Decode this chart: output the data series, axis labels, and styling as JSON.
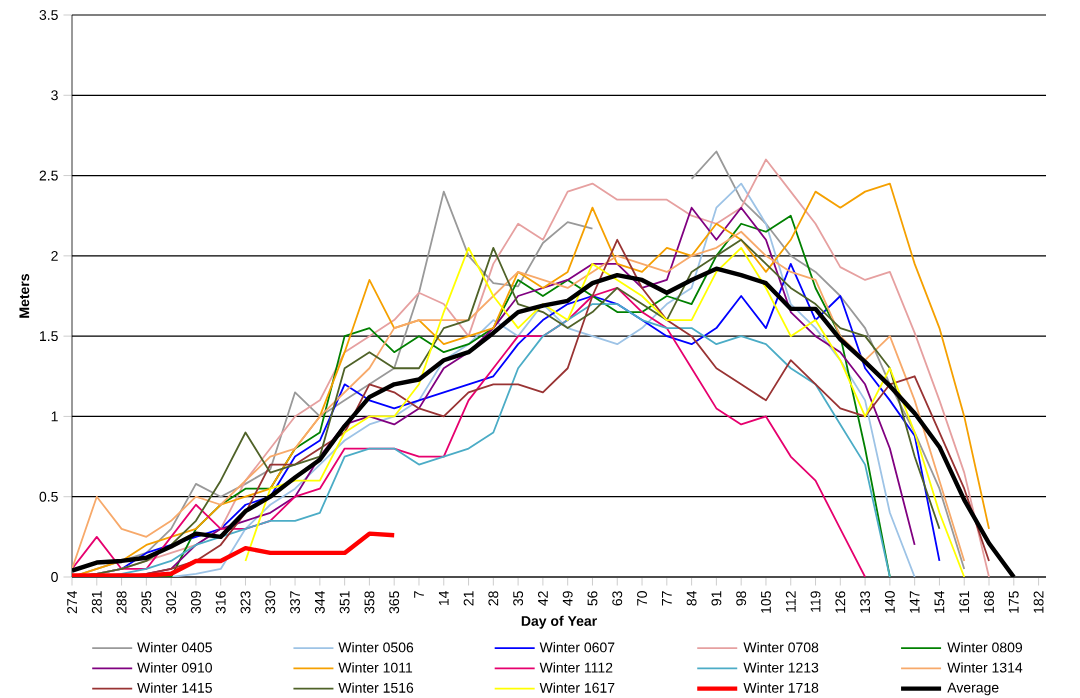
{
  "chart_data": {
    "type": "line",
    "xlabel": "Day of Year",
    "ylabel": "Meters",
    "ylim": [
      0,
      3.5
    ],
    "yticks": [
      0,
      0.5,
      1,
      1.5,
      2,
      2.5,
      3,
      3.5
    ],
    "categories": [
      "274",
      "281",
      "288",
      "295",
      "302",
      "309",
      "316",
      "323",
      "330",
      "337",
      "344",
      "351",
      "358",
      "365",
      "7",
      "14",
      "21",
      "28",
      "35",
      "42",
      "49",
      "56",
      "63",
      "70",
      "77",
      "84",
      "91",
      "98",
      "105",
      "112",
      "119",
      "126",
      "133",
      "140",
      "147",
      "154",
      "161",
      "168",
      "175",
      "182"
    ],
    "grid": "y",
    "legend": "bottom",
    "line_style": "solid",
    "series": [
      {
        "name": "Winter 0405",
        "color": "#999999",
        "values": [
          0,
          0.05,
          0.1,
          0.15,
          0.3,
          0.58,
          0.5,
          0.58,
          0.67,
          1.15,
          1.0,
          1.1,
          1.2,
          1.3,
          1.77,
          2.4,
          2.0,
          1.83,
          1.81,
          2.08,
          2.21,
          2.17,
          null,
          null,
          null,
          2.48,
          2.65,
          2.35,
          2.2,
          2.0,
          1.9,
          1.75,
          1.55,
          1.2,
          0.9,
          0.55,
          0.05,
          null,
          null,
          null
        ]
      },
      {
        "name": "Winter 0506",
        "color": "#9dc3e6",
        "values": [
          null,
          null,
          null,
          0,
          0,
          0.02,
          0.05,
          0.3,
          0.45,
          0.55,
          0.7,
          0.85,
          0.95,
          1.0,
          1.1,
          1.35,
          1.45,
          1.6,
          1.5,
          1.7,
          1.55,
          1.5,
          1.45,
          1.55,
          1.7,
          1.8,
          2.3,
          2.45,
          2.2,
          1.7,
          1.55,
          1.35,
          1.1,
          0.4,
          0,
          null,
          null,
          null,
          null,
          null
        ]
      },
      {
        "name": "Winter 0607",
        "color": "#0000ff",
        "values": [
          0,
          0.02,
          0.05,
          0.15,
          0.2,
          0.25,
          0.3,
          0.45,
          0.5,
          0.75,
          0.85,
          1.2,
          1.1,
          1.05,
          1.1,
          1.15,
          1.2,
          1.25,
          1.45,
          1.6,
          1.7,
          1.75,
          1.7,
          1.6,
          1.5,
          1.45,
          1.55,
          1.75,
          1.55,
          1.95,
          1.6,
          1.75,
          1.3,
          1.1,
          0.88,
          0.1,
          null,
          null,
          null,
          null
        ]
      },
      {
        "name": "Winter 0708",
        "color": "#e6a0a0",
        "values": [
          0,
          0.02,
          0.05,
          0.1,
          0.15,
          0.2,
          0.3,
          0.6,
          0.8,
          1.0,
          1.1,
          1.4,
          1.5,
          1.6,
          1.77,
          1.7,
          1.5,
          1.95,
          2.2,
          2.1,
          2.4,
          2.45,
          2.35,
          2.35,
          2.35,
          2.25,
          2.2,
          2.3,
          2.6,
          2.4,
          2.2,
          1.93,
          1.85,
          1.9,
          1.52,
          1.1,
          0.65,
          0,
          null,
          null
        ]
      },
      {
        "name": "Winter 0809",
        "color": "#008000",
        "values": [
          null,
          null,
          null,
          0,
          0,
          0.3,
          0.45,
          0.55,
          0.55,
          0.8,
          0.9,
          1.5,
          1.55,
          1.4,
          1.5,
          1.4,
          1.45,
          1.55,
          1.85,
          1.75,
          1.85,
          1.75,
          1.65,
          1.65,
          1.75,
          1.7,
          2.0,
          2.2,
          2.15,
          2.25,
          1.8,
          1.5,
          0.8,
          0,
          null,
          null,
          null,
          null,
          null,
          null
        ]
      },
      {
        "name": "Winter 0910",
        "color": "#800080",
        "values": [
          null,
          null,
          null,
          0.02,
          0.05,
          0.2,
          0.3,
          0.35,
          0.4,
          0.5,
          0.75,
          0.95,
          1.0,
          0.95,
          1.05,
          1.3,
          1.4,
          1.55,
          1.75,
          1.8,
          1.85,
          1.95,
          1.95,
          1.8,
          1.85,
          2.3,
          2.1,
          2.3,
          2.1,
          1.65,
          1.5,
          1.4,
          1.2,
          0.8,
          0.2,
          null,
          null,
          null,
          null,
          null
        ]
      },
      {
        "name": "Winter 1011",
        "color": "#f5a000",
        "values": [
          0,
          0.05,
          0.1,
          0.2,
          0.25,
          0.3,
          0.45,
          0.5,
          0.55,
          0.8,
          1.0,
          1.4,
          1.85,
          1.55,
          1.6,
          1.45,
          1.5,
          1.55,
          1.9,
          1.8,
          1.9,
          2.3,
          1.95,
          1.9,
          2.05,
          2.0,
          2.2,
          2.1,
          1.9,
          2.1,
          2.4,
          2.3,
          2.4,
          2.45,
          1.95,
          1.55,
          1.0,
          0.3,
          null,
          null
        ]
      },
      {
        "name": "Winter 1112",
        "color": "#e6006e",
        "values": [
          0.05,
          0.25,
          0.05,
          0.05,
          0.25,
          0.45,
          0.3,
          0.3,
          0.35,
          0.5,
          0.55,
          0.8,
          0.8,
          0.8,
          0.75,
          0.75,
          1.1,
          1.3,
          1.5,
          1.5,
          1.6,
          1.75,
          1.8,
          1.65,
          1.55,
          1.3,
          1.05,
          0.95,
          1.0,
          0.75,
          0.6,
          0.3,
          0,
          null,
          null,
          null,
          null,
          null,
          null,
          null
        ]
      },
      {
        "name": "Winter 1213",
        "color": "#4bacc6",
        "values": [
          0,
          0,
          0.02,
          0.05,
          0.1,
          0.2,
          0.25,
          0.3,
          0.35,
          0.35,
          0.4,
          0.75,
          0.8,
          0.8,
          0.7,
          0.75,
          0.8,
          0.9,
          1.3,
          1.5,
          1.6,
          1.7,
          1.7,
          1.6,
          1.55,
          1.55,
          1.45,
          1.5,
          1.45,
          1.3,
          1.2,
          0.95,
          0.7,
          0,
          null,
          null,
          null,
          null,
          null,
          null
        ]
      },
      {
        "name": "Winter 1314",
        "color": "#f7a96a",
        "values": [
          0.05,
          0.5,
          0.3,
          0.25,
          0.35,
          0.5,
          0.45,
          0.6,
          0.75,
          0.8,
          1.0,
          1.15,
          1.3,
          1.55,
          1.6,
          1.6,
          1.6,
          1.75,
          1.9,
          1.85,
          1.8,
          1.9,
          2.0,
          1.95,
          1.9,
          2.0,
          2.05,
          2.15,
          2.0,
          1.9,
          1.85,
          1.5,
          1.35,
          1.5,
          1.1,
          0.6,
          0.1,
          null,
          null,
          null
        ]
      },
      {
        "name": "Winter 1415",
        "color": "#993333",
        "values": [
          null,
          0,
          0,
          0.02,
          0.05,
          0.1,
          0.2,
          0.4,
          0.7,
          0.7,
          0.8,
          0.9,
          1.2,
          1.15,
          1.05,
          1.0,
          1.15,
          1.2,
          1.2,
          1.15,
          1.3,
          1.75,
          2.1,
          1.8,
          1.6,
          1.5,
          1.3,
          1.2,
          1.1,
          1.35,
          1.2,
          1.05,
          1.0,
          1.2,
          1.25,
          0.9,
          0.55,
          0.1,
          null,
          null
        ]
      },
      {
        "name": "Winter 1516",
        "color": "#4f6228",
        "values": [
          0,
          0.02,
          0.05,
          0.1,
          0.2,
          0.35,
          0.6,
          0.9,
          0.65,
          0.7,
          0.75,
          1.3,
          1.4,
          1.3,
          1.3,
          1.55,
          1.6,
          2.05,
          1.7,
          1.65,
          1.55,
          1.65,
          1.8,
          1.7,
          1.6,
          1.9,
          2.0,
          2.1,
          1.95,
          1.8,
          1.7,
          1.55,
          1.5,
          1.3,
          0.75,
          0.3,
          null,
          null,
          null,
          null
        ]
      },
      {
        "name": "Winter 1617",
        "color": "#ffff00",
        "values": [
          null,
          null,
          null,
          null,
          null,
          null,
          null,
          0.1,
          0.55,
          0.6,
          0.6,
          0.9,
          1.0,
          1.0,
          1.2,
          1.65,
          2.05,
          1.75,
          1.55,
          1.7,
          1.6,
          1.95,
          1.85,
          1.75,
          1.6,
          1.6,
          1.9,
          2.05,
          1.8,
          1.5,
          1.6,
          1.35,
          1.0,
          1.3,
          0.9,
          0.4,
          0,
          null,
          null,
          null
        ]
      },
      {
        "name": "Winter 1718",
        "color": "#ff0000",
        "values": [
          0.01,
          0.01,
          0.01,
          0.01,
          0.02,
          0.1,
          0.1,
          0.18,
          0.15,
          0.15,
          0.15,
          0.15,
          0.27,
          0.26,
          null,
          null,
          null,
          null,
          null,
          null,
          null,
          null,
          null,
          null,
          null,
          null,
          null,
          null,
          null,
          null,
          null,
          null,
          null,
          null,
          null,
          null,
          null,
          null,
          null,
          null
        ]
      },
      {
        "name": "Average",
        "color": "#000000",
        "values": [
          0.04,
          0.09,
          0.1,
          0.12,
          0.19,
          0.27,
          0.25,
          0.41,
          0.5,
          0.62,
          0.73,
          0.94,
          1.12,
          1.2,
          1.23,
          1.35,
          1.4,
          1.52,
          1.65,
          1.69,
          1.72,
          1.83,
          1.88,
          1.85,
          1.77,
          1.85,
          1.92,
          1.88,
          1.83,
          1.67,
          1.67,
          1.48,
          1.34,
          1.19,
          1.02,
          0.81,
          0.48,
          0.21,
          0,
          null
        ]
      }
    ]
  }
}
